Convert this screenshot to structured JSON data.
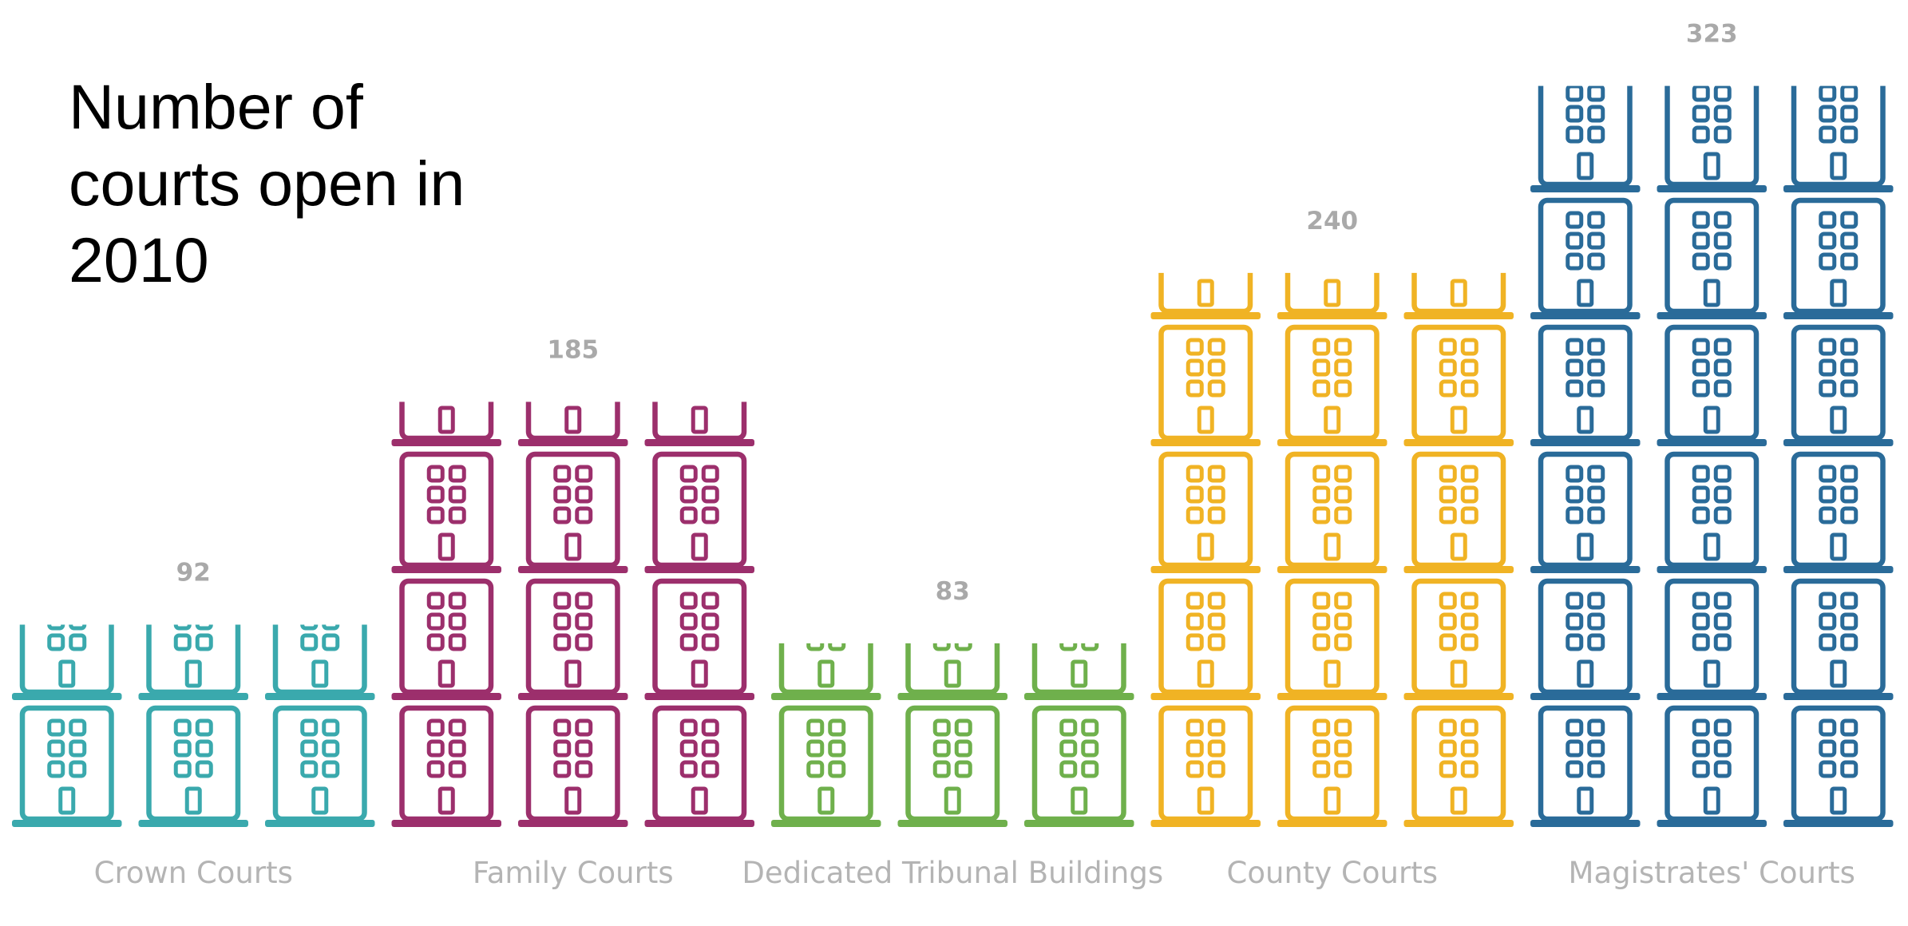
{
  "chart_data": {
    "type": "bar",
    "title": "Number of courts open in 2010",
    "xlabel": "",
    "ylabel": "",
    "categories": [
      "Crown Courts",
      "Family Courts",
      "Dedicated Tribunal Buildings",
      "County Courts",
      "Magistrates' Courts"
    ],
    "values": [
      92,
      185,
      83,
      240,
      323
    ],
    "value_labels": [
      "92",
      "185",
      "83",
      "240",
      "323"
    ],
    "units_per_icon": 18,
    "icon": "court-building-icon",
    "legend": "none",
    "grid": false,
    "colors": [
      "#3aa9ad",
      "#9c2f6c",
      "#6fb04c",
      "#f0b324",
      "#2a6b99"
    ]
  }
}
